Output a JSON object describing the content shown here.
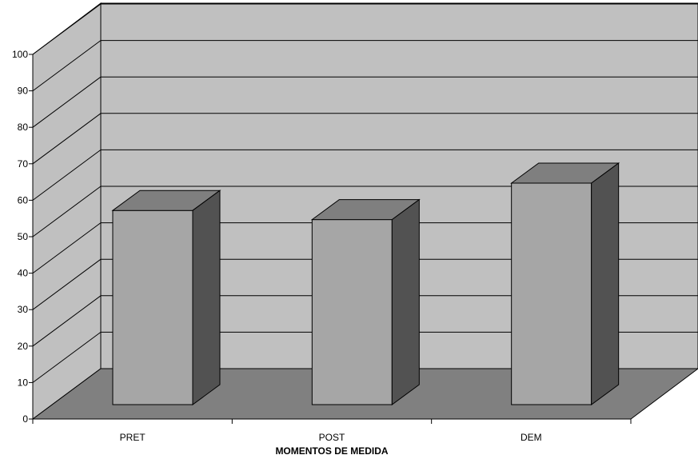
{
  "chart_data": {
    "type": "bar",
    "categories": [
      "PRET",
      "POST",
      "DEM"
    ],
    "values": [
      55,
      52.5,
      62.5
    ],
    "title": "",
    "xlabel": "MOMENTOS DE MEDIDA",
    "ylabel": "",
    "ylim": [
      0,
      100
    ],
    "yticks": [
      "0",
      "10",
      "20",
      "30",
      "40",
      "50",
      "60",
      "70",
      "80",
      "90",
      "100"
    ],
    "grid": true,
    "style": "3d",
    "colors": {
      "wall": "#c0c0c0",
      "floor": "#808080",
      "bar_front": "#a6a6a6",
      "bar_top": "#7f7f7f",
      "bar_side": "#525252"
    }
  }
}
